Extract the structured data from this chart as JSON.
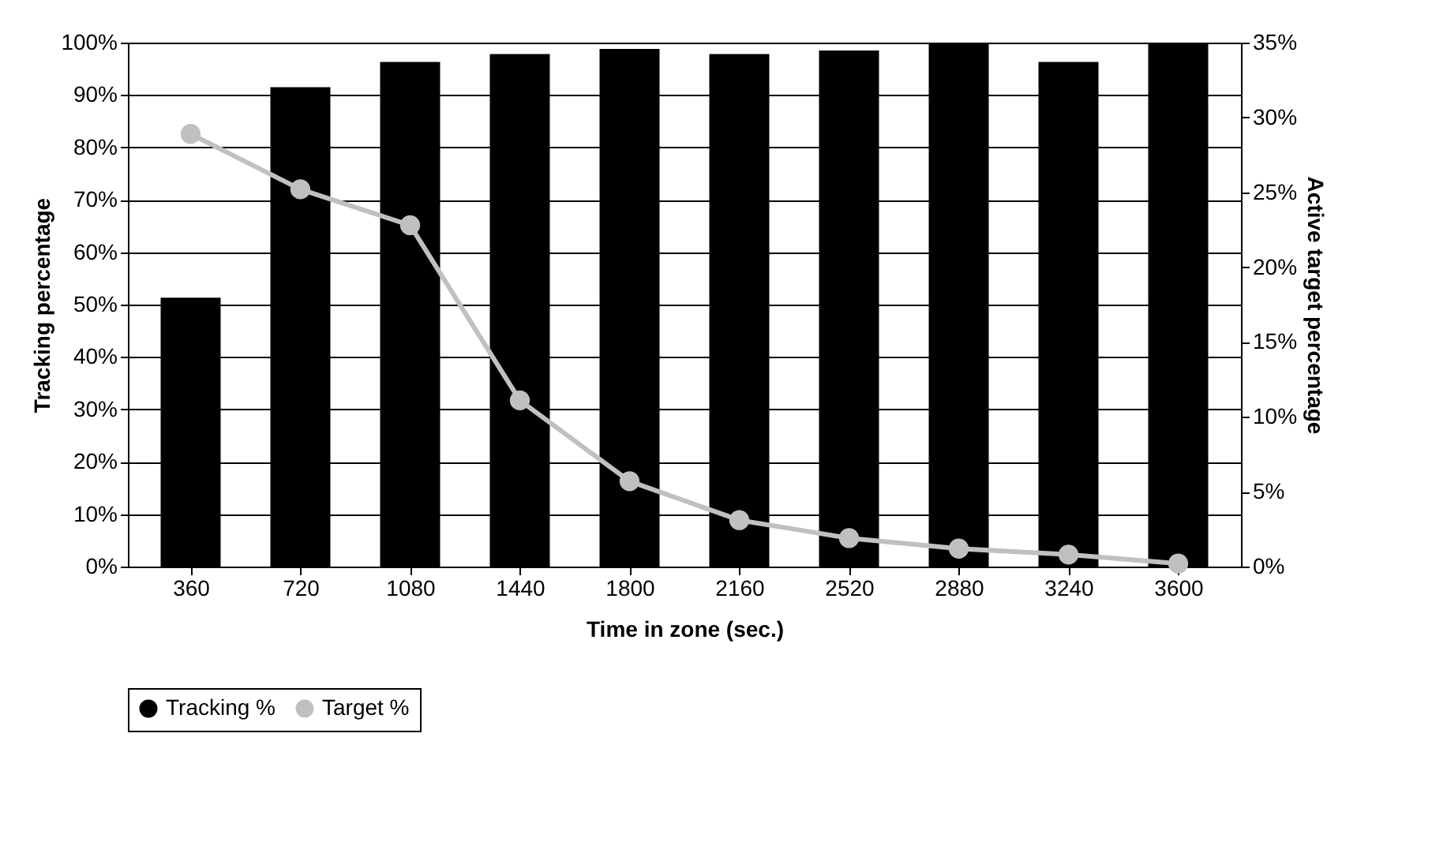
{
  "chart_data": {
    "type": "bar",
    "xlabel": "Time in zone (sec.)",
    "ylabel": "Tracking percentage",
    "y2label": "Active target percentage",
    "categories": [
      "360",
      "720",
      "1080",
      "1440",
      "1800",
      "2160",
      "2520",
      "2880",
      "3240",
      "3600"
    ],
    "series": [
      {
        "name": "Tracking %",
        "color": "#000000",
        "values": [
          51.3,
          91.5,
          96.3,
          97.8,
          98.8,
          97.8,
          98.5,
          100,
          96.3,
          100
        ]
      },
      {
        "name": "Target %",
        "type": "line",
        "axis": "y2",
        "color": "#c0c0c0",
        "values": [
          28.9,
          25.2,
          22.8,
          11.1,
          5.7,
          3.1,
          1.9,
          1.2,
          0.8,
          0.2
        ]
      }
    ],
    "ylim": [
      0,
      100
    ],
    "yticks": [
      {
        "value": 0,
        "label": "0%"
      },
      {
        "value": 10,
        "label": "10%"
      },
      {
        "value": 20,
        "label": "20%"
      },
      {
        "value": 30,
        "label": "30%"
      },
      {
        "value": 40,
        "label": "40%"
      },
      {
        "value": 50,
        "label": "50%"
      },
      {
        "value": 60,
        "label": "60%"
      },
      {
        "value": 70,
        "label": "70%"
      },
      {
        "value": 80,
        "label": "80%"
      },
      {
        "value": 90,
        "label": "90%"
      },
      {
        "value": 100,
        "label": "100%"
      }
    ],
    "y2lim": [
      0,
      35
    ],
    "y2ticks": [
      {
        "value": 0,
        "label": "0%"
      },
      {
        "value": 5,
        "label": "5%"
      },
      {
        "value": 10,
        "label": "10%"
      },
      {
        "value": 15,
        "label": "15%"
      },
      {
        "value": 20,
        "label": "20%"
      },
      {
        "value": 25,
        "label": "25%"
      },
      {
        "value": 30,
        "label": "30%"
      },
      {
        "value": 35,
        "label": "35%"
      }
    ],
    "grid": "y",
    "legend": "bottom",
    "marker": "circle"
  }
}
